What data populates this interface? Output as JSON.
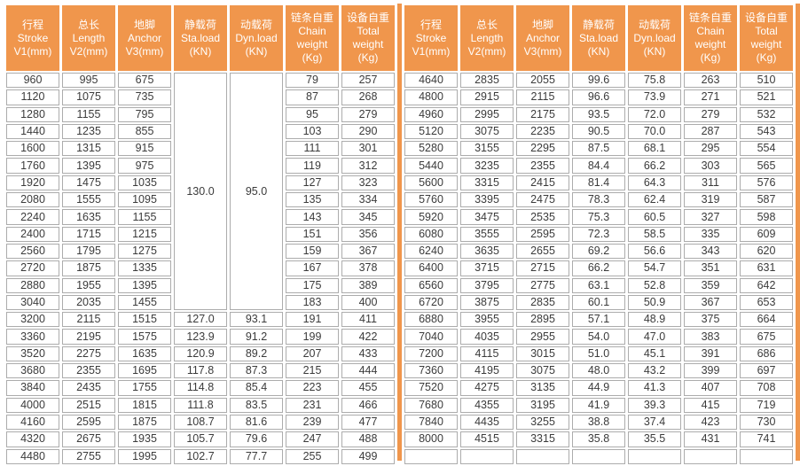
{
  "colors": {
    "header_bg": "#F0964C",
    "header_text": "#FFFFFF",
    "cell_border": "#ACACAC",
    "cell_text": "#3B3B3B",
    "divider": "#F0964C",
    "page_bg": "#FFFFFF"
  },
  "tables": [
    {
      "name": "left-table",
      "headers": [
        {
          "name": "stroke",
          "lines": [
            "行程",
            "Stroke",
            "V1(mm)"
          ]
        },
        {
          "name": "length",
          "lines": [
            "总长",
            "Length",
            "V2(mm)"
          ]
        },
        {
          "name": "anchor",
          "lines": [
            "地脚",
            "Anchor",
            "V3(mm)"
          ]
        },
        {
          "name": "sta-load",
          "lines": [
            "静载荷",
            "Sta.load",
            "(KN)"
          ]
        },
        {
          "name": "dyn-load",
          "lines": [
            "动载荷",
            "Dyn.load",
            "(KN)"
          ]
        },
        {
          "name": "chain-weight",
          "lines": [
            "链条自重",
            "Chain",
            "weight",
            "(Kg)"
          ]
        },
        {
          "name": "total-weight",
          "lines": [
            "设备自重",
            "Total",
            "weight",
            "(Kg)"
          ]
        }
      ],
      "rows": [
        [
          "960",
          "995",
          "675",
          {
            "v": "130.0",
            "rowspan": 14
          },
          {
            "v": "95.0",
            "rowspan": 14
          },
          "79",
          "257"
        ],
        [
          "1120",
          "1075",
          "735",
          null,
          null,
          "87",
          "268"
        ],
        [
          "1280",
          "1155",
          "795",
          null,
          null,
          "95",
          "279"
        ],
        [
          "1440",
          "1235",
          "855",
          null,
          null,
          "103",
          "290"
        ],
        [
          "1600",
          "1315",
          "915",
          null,
          null,
          "111",
          "301"
        ],
        [
          "1760",
          "1395",
          "975",
          null,
          null,
          "119",
          "312"
        ],
        [
          "1920",
          "1475",
          "1035",
          null,
          null,
          "127",
          "323"
        ],
        [
          "2080",
          "1555",
          "1095",
          null,
          null,
          "135",
          "334"
        ],
        [
          "2240",
          "1635",
          "1155",
          null,
          null,
          "143",
          "345"
        ],
        [
          "2400",
          "1715",
          "1215",
          null,
          null,
          "151",
          "356"
        ],
        [
          "2560",
          "1795",
          "1275",
          null,
          null,
          "159",
          "367"
        ],
        [
          "2720",
          "1875",
          "1335",
          null,
          null,
          "167",
          "378"
        ],
        [
          "2880",
          "1955",
          "1395",
          null,
          null,
          "175",
          "389"
        ],
        [
          "3040",
          "2035",
          "1455",
          null,
          null,
          "183",
          "400"
        ],
        [
          "3200",
          "2115",
          "1515",
          "127.0",
          "93.1",
          "191",
          "411"
        ],
        [
          "3360",
          "2195",
          "1575",
          "123.9",
          "91.2",
          "199",
          "422"
        ],
        [
          "3520",
          "2275",
          "1635",
          "120.9",
          "89.2",
          "207",
          "433"
        ],
        [
          "3680",
          "2355",
          "1695",
          "117.8",
          "87.3",
          "215",
          "444"
        ],
        [
          "3840",
          "2435",
          "1755",
          "114.8",
          "85.4",
          "223",
          "455"
        ],
        [
          "4000",
          "2515",
          "1815",
          "111.8",
          "83.5",
          "231",
          "466"
        ],
        [
          "4160",
          "2595",
          "1875",
          "108.7",
          "81.6",
          "239",
          "477"
        ],
        [
          "4320",
          "2675",
          "1935",
          "105.7",
          "79.6",
          "247",
          "488"
        ],
        [
          "4480",
          "2755",
          "1995",
          "102.7",
          "77.7",
          "255",
          "499"
        ]
      ]
    },
    {
      "name": "right-table",
      "headers": [
        {
          "name": "stroke",
          "lines": [
            "行程",
            "Stroke",
            "V1(mm)"
          ]
        },
        {
          "name": "length",
          "lines": [
            "总长",
            "Length",
            "V2(mm)"
          ]
        },
        {
          "name": "anchor",
          "lines": [
            "地脚",
            "Anchor",
            "V3(mm)"
          ]
        },
        {
          "name": "sta-load",
          "lines": [
            "静载荷",
            "Sta.load",
            "(KN)"
          ]
        },
        {
          "name": "dyn-load",
          "lines": [
            "动载荷",
            "Dyn.load",
            "(KN)"
          ]
        },
        {
          "name": "chain-weight",
          "lines": [
            "链条自重",
            "Chain",
            "weight",
            "(Kg)"
          ]
        },
        {
          "name": "total-weight",
          "lines": [
            "设备自重",
            "Total",
            "weight",
            "(Kg)"
          ]
        }
      ],
      "rows": [
        [
          "4640",
          "2835",
          "2055",
          "99.6",
          "75.8",
          "263",
          "510"
        ],
        [
          "4800",
          "2915",
          "2115",
          "96.6",
          "73.9",
          "271",
          "521"
        ],
        [
          "4960",
          "2995",
          "2175",
          "93.5",
          "72.0",
          "279",
          "532"
        ],
        [
          "5120",
          "3075",
          "2235",
          "90.5",
          "70.0",
          "287",
          "543"
        ],
        [
          "5280",
          "3155",
          "2295",
          "87.5",
          "68.1",
          "295",
          "554"
        ],
        [
          "5440",
          "3235",
          "2355",
          "84.4",
          "66.2",
          "303",
          "565"
        ],
        [
          "5600",
          "3315",
          "2415",
          "81.4",
          "64.3",
          "311",
          "576"
        ],
        [
          "5760",
          "3395",
          "2475",
          "78.3",
          "62.4",
          "319",
          "587"
        ],
        [
          "5920",
          "3475",
          "2535",
          "75.3",
          "60.5",
          "327",
          "598"
        ],
        [
          "6080",
          "3555",
          "2595",
          "72.3",
          "58.5",
          "335",
          "609"
        ],
        [
          "6240",
          "3635",
          "2655",
          "69.2",
          "56.6",
          "343",
          "620"
        ],
        [
          "6400",
          "3715",
          "2715",
          "66.2",
          "54.7",
          "351",
          "631"
        ],
        [
          "6560",
          "3795",
          "2775",
          "63.1",
          "52.8",
          "359",
          "642"
        ],
        [
          "6720",
          "3875",
          "2835",
          "60.1",
          "50.9",
          "367",
          "653"
        ],
        [
          "6880",
          "3955",
          "2895",
          "57.1",
          "48.9",
          "375",
          "664"
        ],
        [
          "7040",
          "4035",
          "2955",
          "54.0",
          "47.0",
          "383",
          "675"
        ],
        [
          "7200",
          "4115",
          "3015",
          "51.0",
          "45.1",
          "391",
          "686"
        ],
        [
          "7360",
          "4195",
          "3075",
          "48.0",
          "43.2",
          "399",
          "697"
        ],
        [
          "7520",
          "4275",
          "3135",
          "44.9",
          "41.3",
          "407",
          "708"
        ],
        [
          "7680",
          "4355",
          "3195",
          "41.9",
          "39.3",
          "415",
          "719"
        ],
        [
          "7840",
          "4435",
          "3255",
          "38.8",
          "37.4",
          "423",
          "730"
        ],
        [
          "8000",
          "4515",
          "3315",
          "35.8",
          "35.5",
          "431",
          "741"
        ],
        [
          "",
          "",
          "",
          "",
          "",
          "",
          ""
        ]
      ]
    }
  ]
}
